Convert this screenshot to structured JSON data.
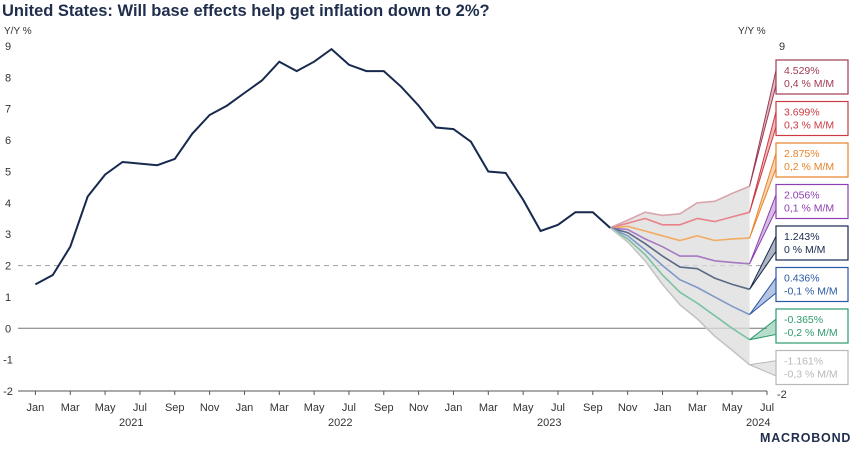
{
  "title": "United States: Will base effects help get inflation down to 2%?",
  "brand": "MACROBOND",
  "chart_data": {
    "type": "line",
    "title": "United States: Will base effects help get inflation down to 2%?",
    "ylabel_left": "Y/Y %",
    "ylabel_right": "Y/Y %",
    "ylim": [
      -2,
      9
    ],
    "yticks": [
      -2,
      -1,
      0,
      1,
      2,
      3,
      4,
      5,
      6,
      7,
      8,
      9
    ],
    "right_ticks": [
      "9",
      "-2"
    ],
    "x_start": "2020-12",
    "x_end": "2024-07",
    "month_ticks": [
      "Jan",
      "Mar",
      "May",
      "Jul",
      "Sep",
      "Nov",
      "Jan",
      "Mar",
      "May",
      "Jul",
      "Sep",
      "Nov",
      "Jan",
      "Mar",
      "May",
      "Jul",
      "Sep",
      "Nov",
      "Jan",
      "Mar",
      "May",
      "Jul"
    ],
    "year_labels": [
      "2021",
      "2022",
      "2023",
      "2024"
    ],
    "reference_line": 2,
    "zero_line": 0,
    "history": {
      "name": "CPI Y/Y",
      "start": "2021-01",
      "values": [
        1.4,
        1.7,
        2.6,
        4.2,
        4.9,
        5.3,
        5.25,
        5.2,
        5.4,
        6.2,
        6.8,
        7.1,
        7.5,
        7.9,
        8.5,
        8.2,
        8.5,
        8.9,
        8.4,
        8.2,
        8.2,
        7.7,
        7.1,
        6.4,
        6.35,
        5.95,
        5.0,
        4.95,
        4.1,
        3.1,
        3.3,
        3.7,
        3.7,
        3.2
      ]
    },
    "scenarios_start": "2023-10",
    "scenarios": [
      {
        "name": "4.529% 0,4 % M/M",
        "label_value": "4.529%",
        "label_mom": "0,4 % M/M",
        "color": "#9e3b52",
        "line_color": "#d9a5ae",
        "values": [
          3.2,
          3.45,
          3.7,
          3.6,
          3.65,
          4.0,
          4.05,
          4.3,
          4.529
        ]
      },
      {
        "name": "3.699% 0,3 % M/M",
        "label_value": "3.699%",
        "label_mom": "0,3 % M/M",
        "color": "#cc3a44",
        "line_color": "#e8838a",
        "values": [
          3.2,
          3.35,
          3.5,
          3.3,
          3.3,
          3.5,
          3.4,
          3.55,
          3.699
        ]
      },
      {
        "name": "2.875% 0,2 % M/M",
        "label_value": "2.875%",
        "label_mom": "0,2 % M/M",
        "color": "#e8832a",
        "line_color": "#f3aa62",
        "values": [
          3.2,
          3.25,
          3.1,
          2.95,
          2.8,
          2.95,
          2.8,
          2.85,
          2.875
        ]
      },
      {
        "name": "2.056% 0,1 % M/M",
        "label_value": "2.056%",
        "label_mom": "0,1 % M/M",
        "color": "#8c3fb0",
        "line_color": "#a779c2",
        "values": [
          3.2,
          3.15,
          2.85,
          2.6,
          2.3,
          2.3,
          2.15,
          2.1,
          2.056
        ]
      },
      {
        "name": "1.243% 0 % M/M",
        "label_value": "1.243%",
        "label_mom": "0 % M/M",
        "color": "#17294d",
        "line_color": "#5b6a85",
        "values": [
          3.2,
          3.05,
          2.7,
          2.3,
          1.95,
          1.9,
          1.6,
          1.4,
          1.243
        ]
      },
      {
        "name": "0.436% -0,1 % M/M",
        "label_value": "0.436%",
        "label_mom": "-0,1 % M/M",
        "color": "#2b57a5",
        "line_color": "#7f98c8",
        "values": [
          3.2,
          2.95,
          2.5,
          2.0,
          1.55,
          1.3,
          1.0,
          0.7,
          0.436
        ]
      },
      {
        "name": "-0.365% -0,2 % M/M",
        "label_value": "-0.365%",
        "label_mom": "-0,2 % M/M",
        "color": "#2e9a6b",
        "line_color": "#7cc3a2",
        "values": [
          3.2,
          2.85,
          2.35,
          1.7,
          1.15,
          0.8,
          0.4,
          0.0,
          -0.365
        ]
      },
      {
        "name": "-1.161% -0,3 % M/M",
        "label_value": "-1.161%",
        "label_mom": "-0,3 % M/M",
        "color": "#b8b8b8",
        "line_color": "#c4c4c4",
        "values": [
          3.2,
          2.75,
          2.15,
          1.4,
          0.75,
          0.3,
          -0.25,
          -0.7,
          -1.161
        ]
      }
    ]
  }
}
